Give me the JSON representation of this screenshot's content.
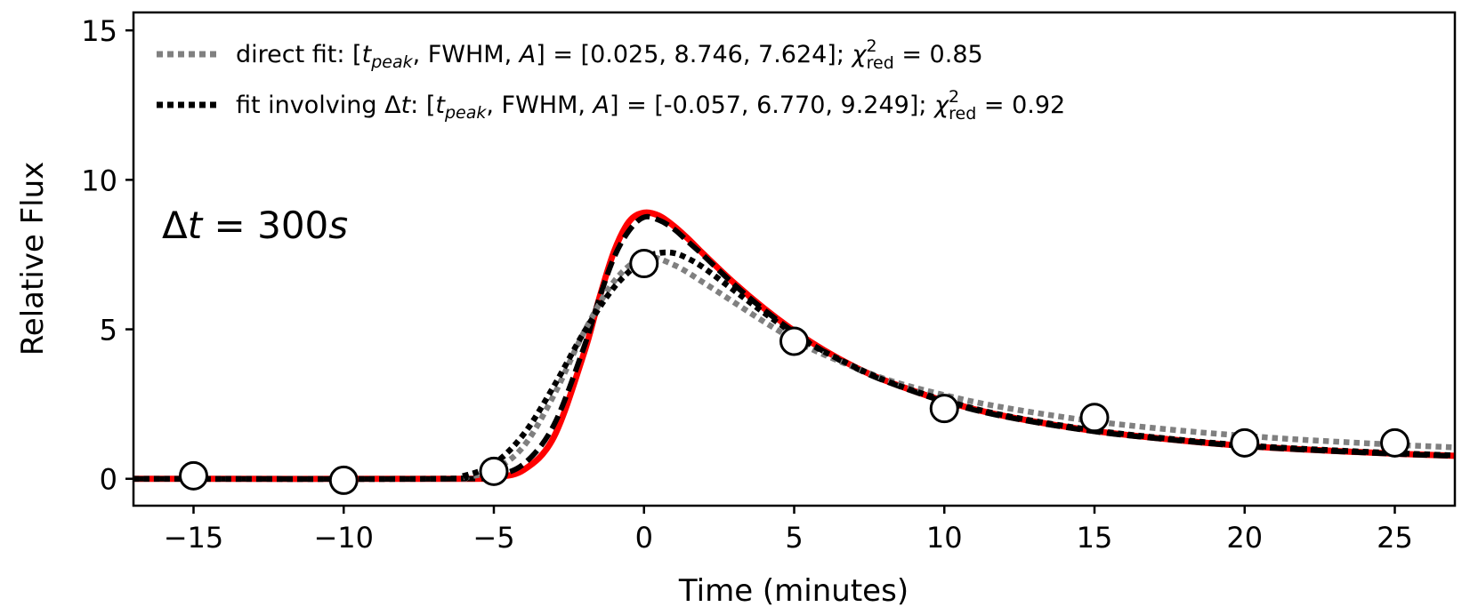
{
  "chart_data": {
    "type": "line",
    "title": "",
    "xlabel": "Time (minutes)",
    "ylabel": "Relative Flux",
    "xlim": [
      -17,
      27
    ],
    "ylim": [
      -0.9,
      15.6
    ],
    "grid": false,
    "xticks": [
      -15,
      -10,
      -5,
      0,
      5,
      10,
      15,
      20,
      25
    ],
    "xtick_labels": [
      "−15",
      "−10",
      "−5",
      "0",
      "5",
      "10",
      "15",
      "20",
      "25"
    ],
    "yticks": [
      0,
      5,
      10,
      15
    ],
    "ytick_labels": [
      "0",
      "5",
      "10",
      "15"
    ],
    "annotation": {
      "delta": "Δ",
      "t": "t",
      "rest": " = 300",
      "s": "s"
    },
    "legend": {
      "position": "top-left",
      "entries": [
        {
          "series": "direct fit",
          "label_prefix": "direct fit: [",
          "t_main": "t",
          "t_sub": "peak",
          "mid": ", FWHM, ",
          "A": "A",
          "values": "] = [0.025, 8.746, 7.624]; ",
          "chi": "χ",
          "chi_sup": "2",
          "chi_sub": "red",
          "chi_value": " = 0.85"
        },
        {
          "series": "fit involving Δt",
          "label_prefix": "fit involving Δ",
          "label_t": "t",
          "label_colon": ": [",
          "t_main": "t",
          "t_sub": "peak",
          "mid": ", FWHM, ",
          "A": "A",
          "values": "] = [-0.057, 6.770, 9.249]; ",
          "chi": "χ",
          "chi_sup": "2",
          "chi_sub": "red",
          "chi_value": " = 0.92"
        }
      ]
    },
    "series": [
      {
        "name": "true flare model",
        "style": "solid",
        "color": "#ff0000",
        "x": [
          -17,
          -6,
          -5,
          -4,
          -3,
          -2,
          -1.5,
          -1,
          -0.5,
          0,
          0.5,
          1,
          1.5,
          2,
          3,
          4,
          5,
          6,
          7,
          8,
          10,
          12,
          15,
          18,
          20,
          22,
          25,
          27
        ],
        "y": [
          0,
          0,
          0.05,
          0.3,
          1.4,
          4.2,
          6.0,
          7.6,
          8.6,
          8.9,
          8.8,
          8.45,
          8.0,
          7.5,
          6.55,
          5.7,
          4.95,
          4.3,
          3.75,
          3.3,
          2.6,
          2.1,
          1.6,
          1.27,
          1.1,
          0.98,
          0.84,
          0.77
        ]
      },
      {
        "name": "model dashed",
        "style": "dashed",
        "color": "#000000",
        "x": [
          -17,
          -6,
          -5,
          -4,
          -3,
          -2,
          -1.5,
          -1,
          -0.5,
          0,
          0.5,
          1,
          1.5,
          2,
          3,
          4,
          5,
          6,
          7,
          8,
          10,
          12,
          15,
          18,
          20,
          22,
          25,
          27
        ],
        "y": [
          0,
          0,
          0.1,
          0.5,
          1.8,
          4.4,
          6.0,
          7.4,
          8.3,
          8.75,
          8.65,
          8.35,
          7.9,
          7.45,
          6.5,
          5.65,
          4.9,
          4.25,
          3.72,
          3.28,
          2.58,
          2.08,
          1.58,
          1.26,
          1.09,
          0.97,
          0.83,
          0.76
        ]
      },
      {
        "name": "direct fit",
        "style": "dotted",
        "color": "#808080",
        "x": [
          -17,
          -7,
          -6,
          -5,
          -4,
          -3,
          -2,
          -1,
          0,
          1,
          2,
          3,
          4,
          5,
          6,
          8,
          10,
          12,
          15,
          18,
          20,
          22,
          25,
          27
        ],
        "y": [
          0,
          0,
          0.05,
          0.3,
          1.1,
          2.8,
          4.9,
          6.6,
          7.4,
          7.15,
          6.55,
          5.9,
          5.25,
          4.65,
          4.15,
          3.35,
          2.8,
          2.38,
          1.92,
          1.6,
          1.44,
          1.3,
          1.14,
          1.05
        ]
      },
      {
        "name": "fit involving Δt",
        "style": "dotted",
        "color": "#000000",
        "x": [
          -17,
          -7,
          -6,
          -5,
          -4,
          -3,
          -2,
          -1,
          0,
          0.5,
          1,
          1.5,
          2,
          3,
          4,
          5,
          6,
          8,
          10,
          12,
          15,
          18,
          20,
          22,
          25,
          27
        ],
        "y": [
          0,
          0,
          0.1,
          0.5,
          1.5,
          3.1,
          4.9,
          6.4,
          7.35,
          7.55,
          7.55,
          7.35,
          7.05,
          6.3,
          5.55,
          4.85,
          4.25,
          3.3,
          2.63,
          2.12,
          1.62,
          1.29,
          1.12,
          1.0,
          0.86,
          0.78
        ]
      },
      {
        "name": "binned observations",
        "style": "markers",
        "color": "#000000",
        "x": [
          -15,
          -10,
          -5,
          0,
          5,
          10,
          15,
          20,
          25
        ],
        "y": [
          0.1,
          -0.05,
          0.25,
          7.2,
          4.6,
          2.35,
          2.05,
          1.2,
          1.2
        ]
      }
    ]
  }
}
